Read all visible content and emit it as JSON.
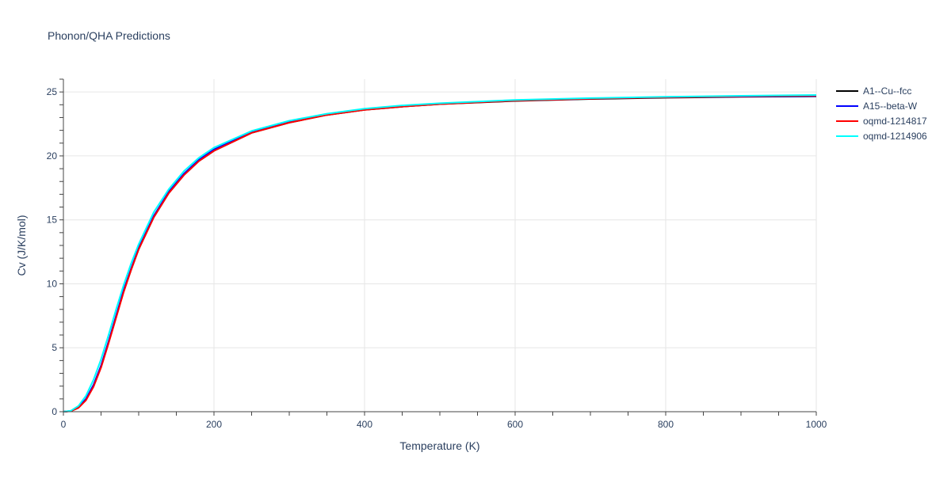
{
  "chart_data": {
    "type": "line",
    "title": "Phonon/QHA Predictions",
    "xlabel": "Temperature (K)",
    "ylabel": "Cv (J/K/mol)",
    "xlim": [
      0,
      1000
    ],
    "ylim": [
      0,
      26
    ],
    "xticks": [
      0,
      200,
      400,
      600,
      800,
      1000
    ],
    "yticks": [
      0,
      5,
      10,
      15,
      20,
      25
    ],
    "grid": true,
    "legend_position": "top-right",
    "x": [
      0,
      10,
      20,
      30,
      40,
      50,
      60,
      70,
      80,
      90,
      100,
      120,
      140,
      160,
      180,
      200,
      250,
      300,
      350,
      400,
      450,
      500,
      600,
      700,
      800,
      900,
      1000
    ],
    "series": [
      {
        "name": "A1--Cu--fcc",
        "color": "#000000",
        "values": [
          0,
          0.05,
          0.32,
          0.95,
          2.0,
          3.5,
          5.4,
          7.4,
          9.4,
          11.1,
          12.7,
          15.2,
          17.1,
          18.5,
          19.6,
          20.4,
          21.8,
          22.6,
          23.2,
          23.6,
          23.85,
          24.05,
          24.3,
          24.45,
          24.55,
          24.62,
          24.66
        ]
      },
      {
        "name": "A15--beta-W",
        "color": "#0000ff",
        "values": [
          0,
          0.06,
          0.34,
          1.0,
          2.1,
          3.6,
          5.5,
          7.5,
          9.5,
          11.2,
          12.8,
          15.3,
          17.2,
          18.6,
          19.7,
          20.5,
          21.85,
          22.65,
          23.25,
          23.65,
          23.9,
          24.08,
          24.33,
          24.48,
          24.58,
          24.64,
          24.68
        ]
      },
      {
        "name": "oqmd-1214817",
        "color": "#ff0000",
        "values": [
          0,
          0.05,
          0.3,
          0.9,
          1.95,
          3.45,
          5.35,
          7.35,
          9.35,
          11.1,
          12.7,
          15.2,
          17.1,
          18.5,
          19.6,
          20.4,
          21.8,
          22.6,
          23.2,
          23.6,
          23.85,
          24.05,
          24.32,
          24.48,
          24.58,
          24.66,
          24.72
        ]
      },
      {
        "name": "oqmd-1214906",
        "color": "#00ffff",
        "values": [
          0,
          0.08,
          0.45,
          1.25,
          2.5,
          4.1,
          6.0,
          8.0,
          9.9,
          11.6,
          13.1,
          15.6,
          17.4,
          18.8,
          19.85,
          20.65,
          21.95,
          22.75,
          23.3,
          23.7,
          23.95,
          24.12,
          24.38,
          24.52,
          24.62,
          24.7,
          24.76
        ]
      }
    ]
  }
}
